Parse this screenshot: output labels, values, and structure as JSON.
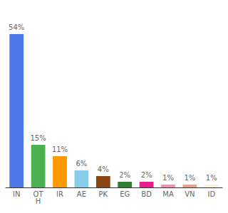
{
  "chart_data": {
    "type": "bar",
    "categories": [
      "IN",
      "OT\nH",
      "IR",
      "AE",
      "PK",
      "EG",
      "BD",
      "MA",
      "VN",
      "ID"
    ],
    "values": [
      54,
      15,
      11,
      6,
      4,
      2,
      2,
      1,
      1,
      1
    ],
    "value_labels": [
      "54%",
      "15%",
      "11%",
      "6%",
      "4%",
      "2%",
      "2%",
      "1%",
      "1%",
      "1%"
    ],
    "data_labels": true,
    "colors": [
      "#4d79e8",
      "#4caf50",
      "#ff9800",
      "#87ceeb",
      "#8B4513",
      "#2e7d32",
      "#e91e8c",
      "#f48fb1",
      "#e8a090",
      "#f5f0e0"
    ],
    "ylim": [
      0,
      62
    ],
    "grid": false,
    "tick_labels": "x"
  }
}
